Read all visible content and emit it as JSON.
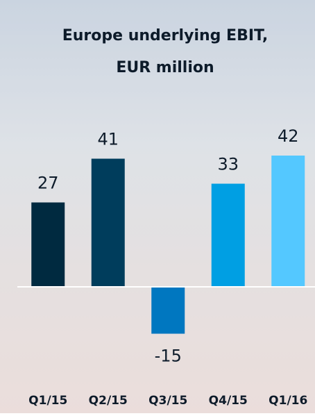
{
  "chart_data": {
    "type": "bar",
    "title": "Europe underlying EBIT,",
    "subtitle": "EUR million",
    "categories": [
      "Q1/15",
      "Q2/15",
      "Q3/15",
      "Q4/15",
      "Q1/16"
    ],
    "values": [
      27,
      41,
      -15,
      33,
      42
    ],
    "colors": [
      "#002a40",
      "#003d5c",
      "#0077c0",
      "#009fe3",
      "#54c8ff"
    ]
  }
}
